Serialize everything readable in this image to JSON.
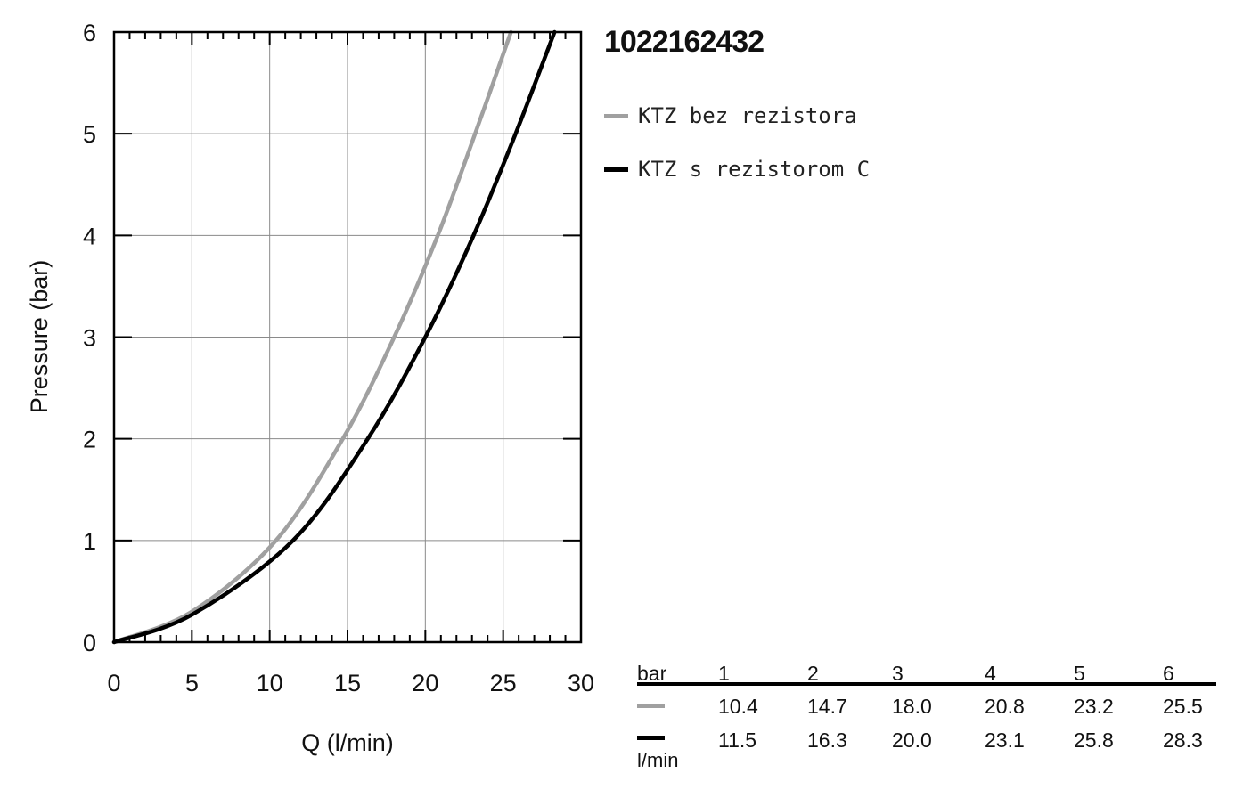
{
  "title": "1022162432",
  "legend": [
    {
      "label": "KTZ bez rezistora",
      "color": "#a0a0a0"
    },
    {
      "label": "KTZ s rezistorom C",
      "color": "#000000"
    }
  ],
  "table": {
    "header_label": "bar",
    "unit_label": "l/min",
    "columns": [
      "1",
      "2",
      "3",
      "4",
      "5",
      "6"
    ],
    "rows": [
      {
        "color": "#a0a0a0",
        "values": [
          "10.4",
          "14.7",
          "18.0",
          "20.8",
          "23.2",
          "25.5"
        ]
      },
      {
        "color": "#000000",
        "values": [
          "11.5",
          "16.3",
          "20.0",
          "23.1",
          "25.8",
          "28.3"
        ]
      }
    ]
  },
  "chart_data": {
    "type": "line",
    "title": "1022162432",
    "xlabel": "Q (l/min)",
    "ylabel": "Pressure (bar)",
    "xlim": [
      0,
      30
    ],
    "ylim": [
      0,
      6
    ],
    "xticks": [
      "0",
      "5",
      "10",
      "15",
      "20",
      "25",
      "30"
    ],
    "yticks": [
      "0",
      "1",
      "2",
      "3",
      "4",
      "5",
      "6"
    ],
    "grid": true,
    "legend_position": "right",
    "series": [
      {
        "name": "KTZ bez rezistora",
        "color": "#a0a0a0",
        "x": [
          0,
          5,
          10.4,
          14.7,
          18.0,
          20.8,
          23.2,
          25.5
        ],
        "y": [
          0,
          0.3,
          1,
          2,
          3,
          4,
          5,
          6
        ]
      },
      {
        "name": "KTZ s rezistorom C",
        "color": "#000000",
        "x": [
          0,
          5,
          11.5,
          16.3,
          20.0,
          23.1,
          25.8,
          28.3
        ],
        "y": [
          0,
          0.27,
          1,
          2,
          3,
          4,
          5,
          6
        ]
      }
    ]
  }
}
